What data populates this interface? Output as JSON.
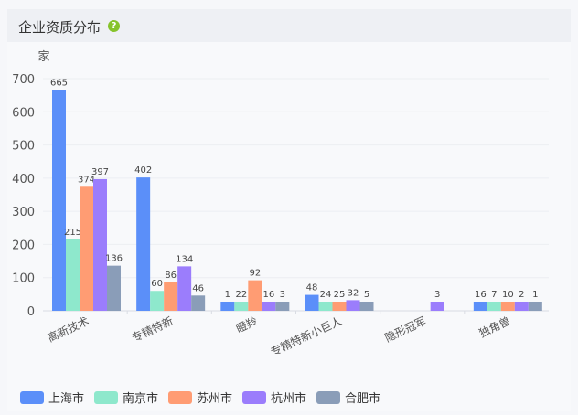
{
  "header": {
    "title": "企业资质分布",
    "help_icon": "question-circle-icon"
  },
  "chart_data": {
    "type": "bar",
    "ylabel": "家",
    "ylim": [
      0,
      700
    ],
    "yticks": [
      0,
      100,
      200,
      300,
      400,
      500,
      600,
      700
    ],
    "categories": [
      "高新技术",
      "专精特新",
      "瞪羚",
      "专精特新小巨人",
      "隐形冠军",
      "独角兽"
    ],
    "series": [
      {
        "name": "上海市",
        "color": "#5b8ff9",
        "values": [
          665,
          402,
          1,
          48,
          null,
          16
        ]
      },
      {
        "name": "南京市",
        "color": "#8ee8cc",
        "values": [
          215,
          60,
          22,
          24,
          null,
          7
        ]
      },
      {
        "name": "苏州市",
        "color": "#ff9c73",
        "values": [
          374,
          86,
          92,
          25,
          null,
          10
        ]
      },
      {
        "name": "杭州市",
        "color": "#9b7dfc",
        "values": [
          397,
          134,
          16,
          32,
          3,
          2
        ]
      },
      {
        "name": "合肥市",
        "color": "#8a9db8",
        "values": [
          136,
          46,
          3,
          5,
          null,
          1
        ]
      }
    ],
    "legend_position": "bottom-left",
    "grid": true
  }
}
